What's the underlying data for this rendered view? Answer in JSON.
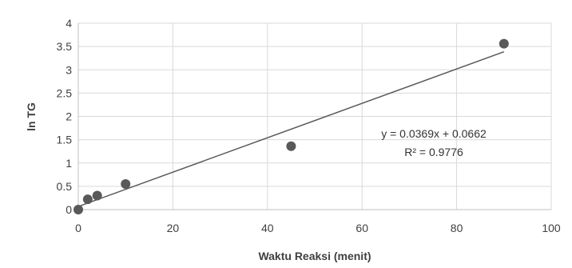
{
  "chart_data": {
    "type": "scatter",
    "title": "",
    "xlabel": "Waktu Reaksi (menit)",
    "ylabel": "ln TG",
    "xlim": [
      0,
      100
    ],
    "ylim": [
      0,
      4
    ],
    "x_ticks": [
      0,
      20,
      40,
      60,
      80,
      100
    ],
    "y_ticks": [
      0,
      0.5,
      1,
      1.5,
      2,
      2.5,
      3,
      3.5,
      4
    ],
    "x_tick_labels": [
      "0",
      "20",
      "40",
      "60",
      "80",
      "100"
    ],
    "y_tick_labels": [
      "0",
      "0.5",
      "1",
      "1.5",
      "2",
      "2.5",
      "3",
      "3.5",
      "4"
    ],
    "grid": true,
    "legend": "none",
    "series": [
      {
        "x": [
          0,
          2,
          4,
          10,
          45,
          90
        ],
        "y": [
          0,
          0.22,
          0.3,
          0.55,
          1.36,
          3.56
        ],
        "color": "#595959"
      }
    ],
    "trendline": {
      "type": "linear",
      "slope": 0.0369,
      "intercept": 0.0662,
      "x_range": [
        0,
        90
      ],
      "color": "#595959"
    },
    "annotations": {
      "equation": "y = 0.0369x + 0.0662",
      "r_squared": "R² = 0.9776"
    },
    "colors": {
      "gridline": "#d9d9d9",
      "axis": "#bfbfbf"
    }
  }
}
